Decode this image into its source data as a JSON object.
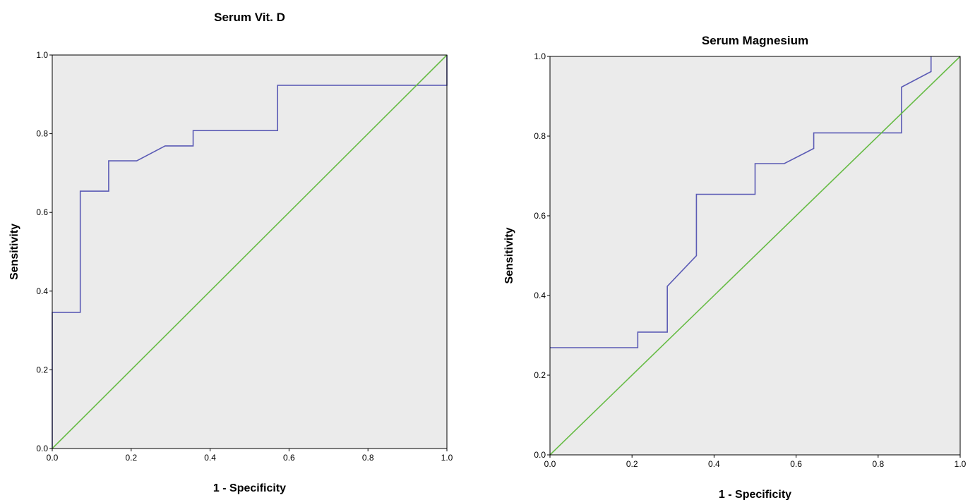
{
  "chart_data": [
    {
      "type": "line",
      "title": "Serum Vit. D",
      "xlabel": "1 - Specificity",
      "ylabel": "Sensitivity",
      "xlim": [
        0,
        1
      ],
      "ylim": [
        0,
        1
      ],
      "xticks": [
        "0.0",
        "0.2",
        "0.4",
        "0.6",
        "0.8",
        "1.0"
      ],
      "yticks": [
        "0.0",
        "0.2",
        "0.4",
        "0.6",
        "0.8",
        "1.0"
      ],
      "grid": false,
      "series": [
        {
          "role": "roc-curve",
          "color": "#5b5bb5",
          "points": [
            [
              0,
              0
            ],
            [
              0,
              0.346
            ],
            [
              0.071,
              0.346
            ],
            [
              0.071,
              0.654
            ],
            [
              0.143,
              0.654
            ],
            [
              0.143,
              0.731
            ],
            [
              0.214,
              0.731
            ],
            [
              0.286,
              0.769
            ],
            [
              0.357,
              0.769
            ],
            [
              0.357,
              0.808
            ],
            [
              0.571,
              0.808
            ],
            [
              0.571,
              0.923
            ],
            [
              1.0,
              0.923
            ],
            [
              1.0,
              1.0
            ]
          ]
        },
        {
          "role": "reference-line",
          "color": "#66bb44",
          "points": [
            [
              0,
              0
            ],
            [
              1,
              1
            ]
          ]
        }
      ]
    },
    {
      "type": "line",
      "title": "Serum Magnesium",
      "xlabel": "1 - Specificity",
      "ylabel": "Sensitivity",
      "xlim": [
        0,
        1
      ],
      "ylim": [
        0,
        1
      ],
      "xticks": [
        "0.0",
        "0.2",
        "0.4",
        "0.6",
        "0.8",
        "1.0"
      ],
      "yticks": [
        "0.0",
        "0.2",
        "0.4",
        "0.6",
        "0.8",
        "1.0"
      ],
      "grid": false,
      "series": [
        {
          "role": "roc-curve",
          "color": "#5b5bb5",
          "points": [
            [
              0,
              0.269
            ],
            [
              0.214,
              0.269
            ],
            [
              0.214,
              0.308
            ],
            [
              0.286,
              0.308
            ],
            [
              0.286,
              0.423
            ],
            [
              0.357,
              0.5
            ],
            [
              0.357,
              0.654
            ],
            [
              0.5,
              0.654
            ],
            [
              0.5,
              0.731
            ],
            [
              0.571,
              0.731
            ],
            [
              0.643,
              0.769
            ],
            [
              0.643,
              0.808
            ],
            [
              0.857,
              0.808
            ],
            [
              0.857,
              0.923
            ],
            [
              0.929,
              0.962
            ],
            [
              0.929,
              1.0
            ]
          ]
        },
        {
          "role": "reference-line",
          "color": "#66bb44",
          "points": [
            [
              0,
              0
            ],
            [
              1,
              1
            ]
          ]
        }
      ]
    }
  ]
}
